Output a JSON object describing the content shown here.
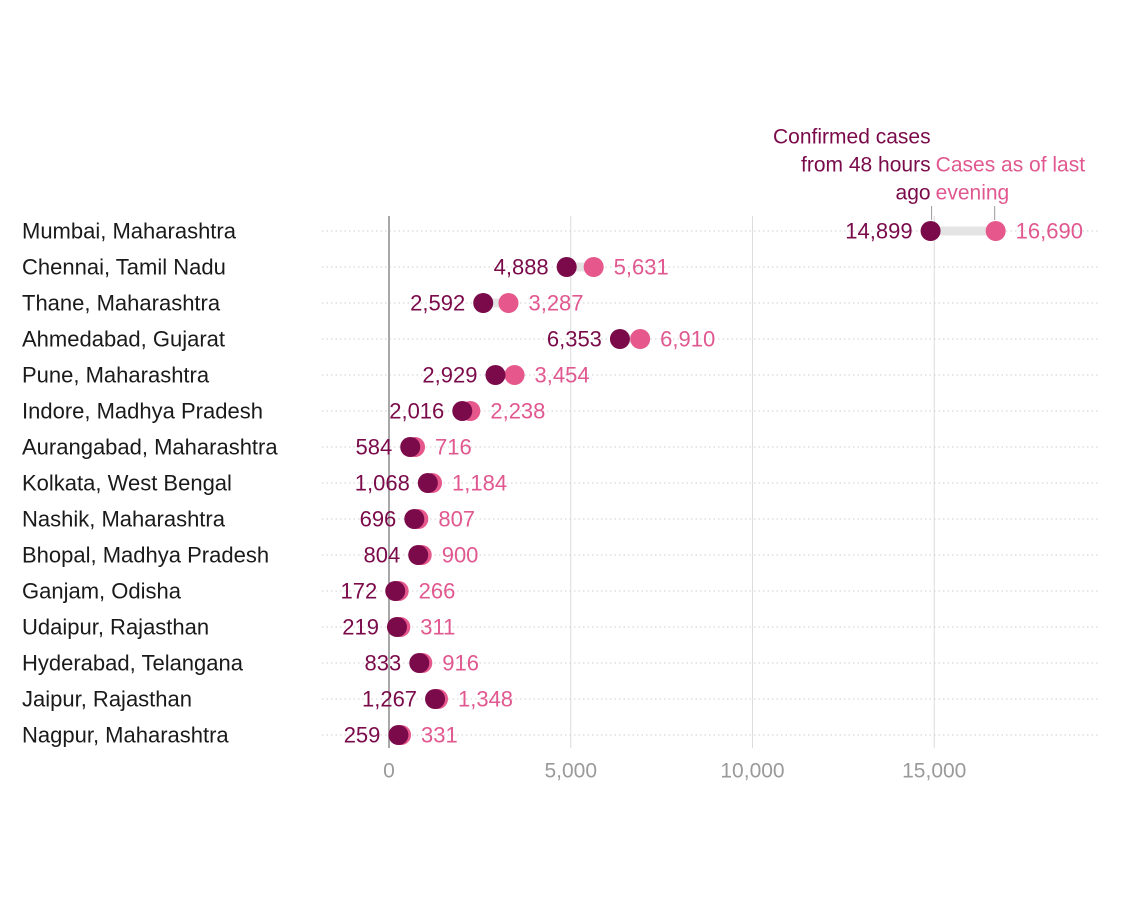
{
  "chart_data": {
    "type": "dot-range",
    "categories": [
      "Mumbai, Maharashtra",
      "Chennai, Tamil Nadu",
      "Thane, Maharashtra",
      "Ahmedabad, Gujarat",
      "Pune, Maharashtra",
      "Indore, Madhya Pradesh",
      "Aurangabad, Maharashtra",
      "Kolkata, West Bengal",
      "Nashik, Maharashtra",
      "Bhopal, Madhya Pradesh",
      "Ganjam, Odisha",
      "Udaipur, Rajasthan",
      "Hyderabad, Telangana",
      "Jaipur, Rajasthan",
      "Nagpur, Maharashtra"
    ],
    "series": [
      {
        "name": "Confirmed cases from 48 hours ago",
        "color": "#7a0a4a",
        "values": [
          14899,
          4888,
          2592,
          6353,
          2929,
          2016,
          584,
          1068,
          696,
          804,
          172,
          219,
          833,
          1267,
          259
        ],
        "labels": [
          "14,899",
          "4,888",
          "2,592",
          "6,353",
          "2,929",
          "2,016",
          "584",
          "1,068",
          "696",
          "804",
          "172",
          "219",
          "833",
          "1,267",
          "259"
        ]
      },
      {
        "name": "Cases as of last evening",
        "color": "#e6578c",
        "values": [
          16690,
          5631,
          3287,
          6910,
          3454,
          2238,
          716,
          1184,
          807,
          900,
          266,
          311,
          916,
          1348,
          331
        ],
        "labels": [
          "16,690",
          "5,631",
          "3,287",
          "6,910",
          "3,454",
          "2,238",
          "716",
          "1,184",
          "807",
          "900",
          "266",
          "311",
          "916",
          "1,348",
          "331"
        ]
      }
    ],
    "legend": {
      "a_lines": [
        "Confirmed cases",
        "from 48 hours",
        "ago"
      ],
      "b_lines": [
        "Cases as of last",
        "evening"
      ],
      "placement": "top-right, above first row"
    },
    "xticks": [
      0,
      5000,
      10000,
      15000
    ],
    "xtick_labels": [
      "0",
      "5,000",
      "10,000",
      "15,000"
    ],
    "xlim": [
      0,
      19500
    ],
    "grid": true,
    "title": "",
    "xlabel": "",
    "ylabel": ""
  }
}
